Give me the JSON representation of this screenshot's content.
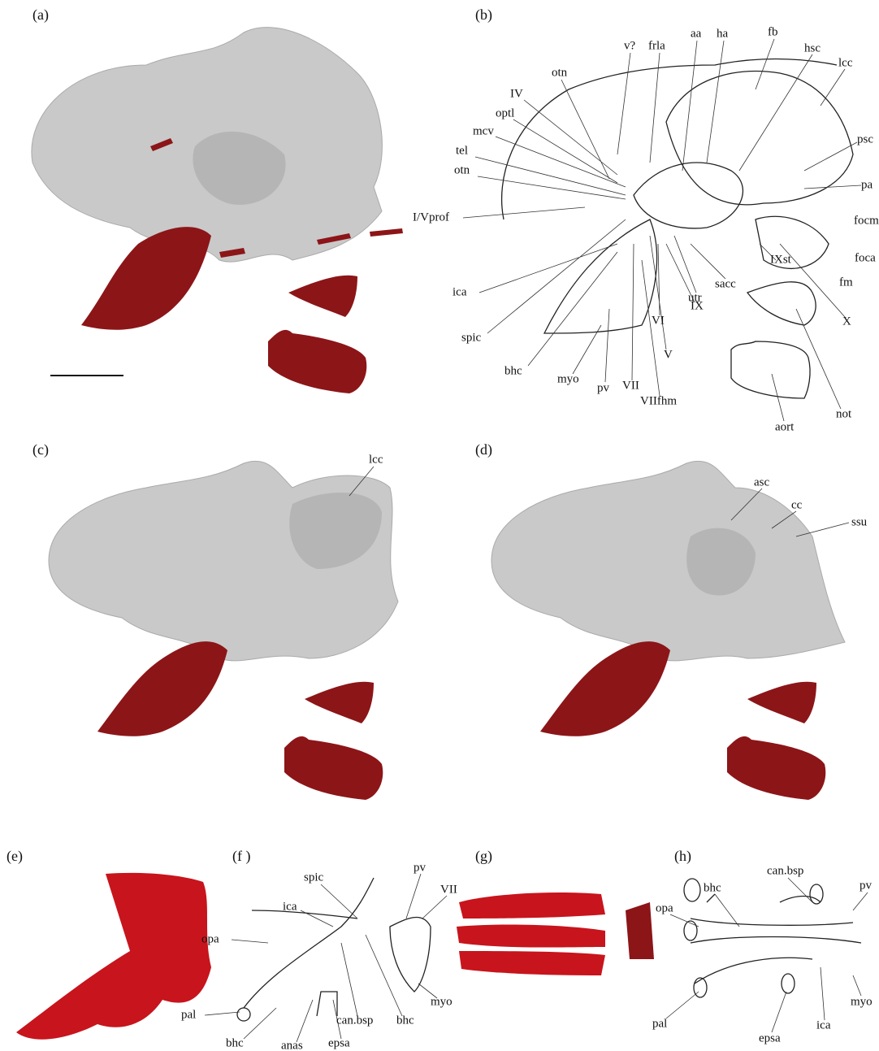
{
  "panels": [
    {
      "label": "(a)"
    },
    {
      "label": "(b)",
      "annotations": [
        "v?",
        "frla",
        "aa",
        "ha",
        "fb",
        "hsc",
        "lcc",
        "otn",
        "IV",
        "optl",
        "mcv",
        "psc",
        "tel",
        "otn",
        "pa",
        "I/Vprof",
        "focm",
        "foca",
        "fm",
        "IXst",
        "ica",
        "sacc",
        "utr",
        "IX",
        "VI",
        "X",
        "spic",
        "V",
        "bhc",
        "myo",
        "VII",
        "pv",
        "VIIfhm",
        "not",
        "aort"
      ]
    },
    {
      "label": "(c)",
      "annotations": [
        "lcc"
      ]
    },
    {
      "label": "(d)",
      "annotations": [
        "asc",
        "cc",
        "ssu"
      ]
    },
    {
      "label": "(e)"
    },
    {
      "label": "(f )",
      "annotations": [
        "spic",
        "pv",
        "VII",
        "ica",
        "opa",
        "pal",
        "myo",
        "bhc",
        "can.bsp",
        "bhc",
        "anas",
        "epsa"
      ]
    },
    {
      "label": "(g)"
    },
    {
      "label": "(h)",
      "annotations": [
        "can.bsp",
        "pv",
        "bhc",
        "opa",
        "myo",
        "pal",
        "ica",
        "epsa"
      ]
    }
  ]
}
